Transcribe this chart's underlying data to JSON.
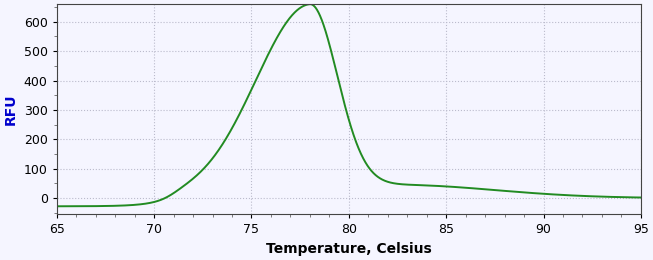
{
  "xlabel": "Temperature, Celsius",
  "ylabel": "RFU",
  "xlim": [
    65,
    95
  ],
  "ylim": [
    -55,
    660
  ],
  "xticks": [
    65,
    70,
    75,
    80,
    85,
    90,
    95
  ],
  "yticks": [
    0,
    100,
    200,
    300,
    400,
    500,
    600
  ],
  "line_color": "#228B22",
  "line_width": 1.4,
  "background_color": "#f5f5ff",
  "plot_bg_color": "#f5f5ff",
  "grid_color": "#bbbbcc",
  "xlabel_color": "#000000",
  "ylabel_color": "#0000cc",
  "tick_label_color": "#000000",
  "xlabel_fontsize": 10,
  "ylabel_fontsize": 10,
  "peak_temp": 78.0,
  "peak_rfu": 630,
  "x_start": 65,
  "x_end": 95
}
